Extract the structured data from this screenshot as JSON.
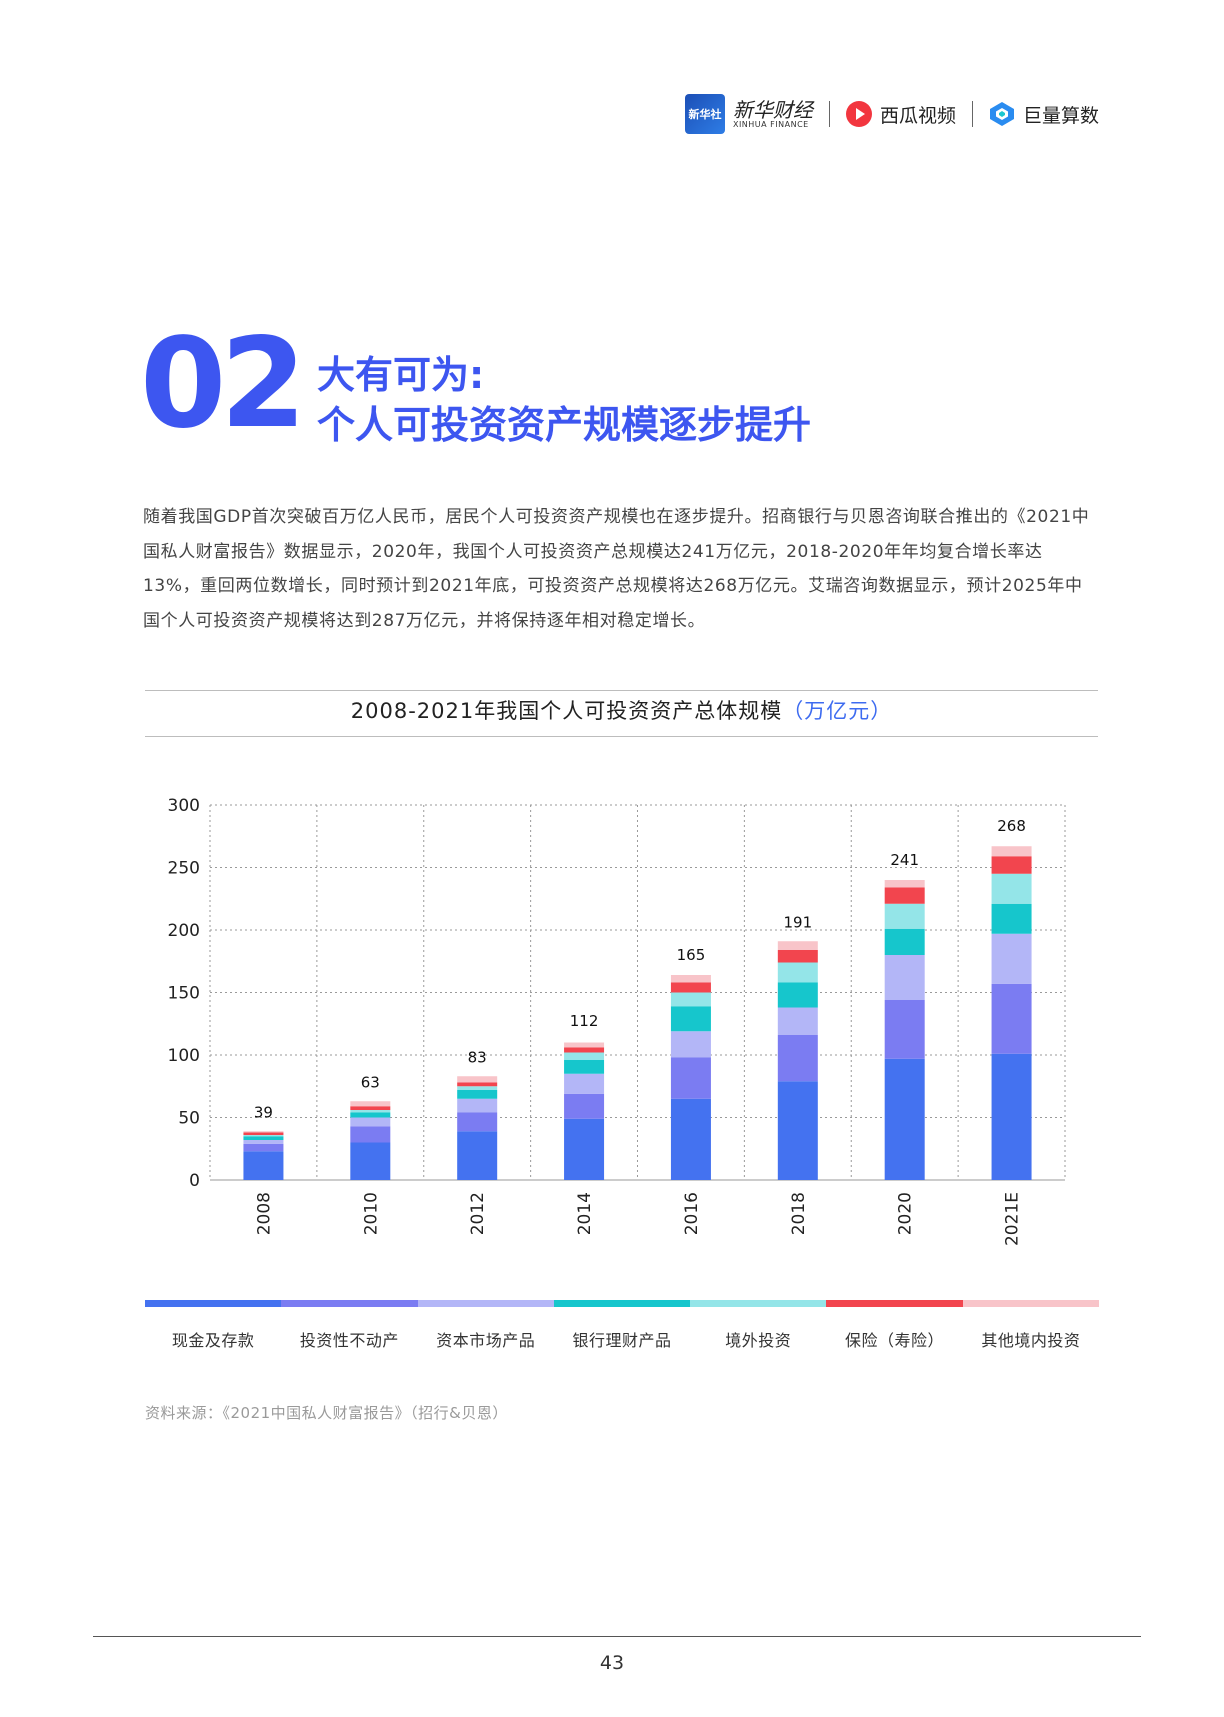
{
  "header": {
    "xinhua_box_text": "新华社",
    "xinhua_cn": "新华财经",
    "xinhua_en": "XINHUA FINANCE",
    "xigua": "西瓜视频",
    "juliang": "巨量算数",
    "brand_color": "#3d56f0"
  },
  "section": {
    "number": "02",
    "title_line1": "大有可为:",
    "title_line2": "个人可投资资产规模逐步提升"
  },
  "body_text": "随着我国GDP首次突破百万亿人民币，居民个人可投资资产规模也在逐步提升。招商银行与贝恩咨询联合推出的《2021中国私人财富报告》数据显示，2020年，我国个人可投资资产总规模达241万亿元，2018-2020年年均复合增长率达13%，重回两位数增长，同时预计到2021年底，可投资资产总规模将达268万亿元。艾瑞咨询数据显示，预计2025年中国个人可投资资产规模将达到287万亿元，并将保持逐年相对稳定增长。",
  "chart_title": "2008-2021年我国个人可投资资产总体规模",
  "chart_unit": "（万亿元）",
  "chart_data": {
    "type": "bar",
    "stacked": true,
    "categories": [
      "2008",
      "2010",
      "2012",
      "2014",
      "2016",
      "2018",
      "2020",
      "2021E"
    ],
    "ylim": [
      0,
      300
    ],
    "yticks": [
      0,
      50,
      100,
      150,
      200,
      250,
      300
    ],
    "grid": true,
    "legend_position": "bottom",
    "totals": [
      39,
      63,
      83,
      112,
      165,
      191,
      241,
      268
    ],
    "series": [
      {
        "name": "现金及存款",
        "color": "#4472f0",
        "values": [
          23,
          30,
          39,
          49,
          65,
          79,
          97,
          101
        ]
      },
      {
        "name": "投资性不动产",
        "color": "#7b7cf2",
        "values": [
          6,
          13,
          15,
          20,
          33,
          37,
          47,
          56
        ]
      },
      {
        "name": "资本市场产品",
        "color": "#b3b6f7",
        "values": [
          3,
          7,
          11,
          16,
          21,
          22,
          36,
          40
        ]
      },
      {
        "name": "银行理财产品",
        "color": "#16c6cc",
        "values": [
          3,
          4,
          7,
          11,
          20,
          20,
          21,
          24
        ]
      },
      {
        "name": "境外投资",
        "color": "#94e5e8",
        "values": [
          1,
          2,
          3,
          6,
          11,
          16,
          20,
          24
        ]
      },
      {
        "name": "保险（寿险）",
        "color": "#f2454e",
        "values": [
          2,
          3,
          3,
          4,
          8,
          10,
          13,
          14
        ]
      },
      {
        "name": "其他境内投资",
        "color": "#f8c4c9",
        "values": [
          1,
          4,
          5,
          4,
          6,
          7,
          6,
          8
        ]
      }
    ]
  },
  "source_text": "资料来源：《2021中国私人财富报告》（招行&贝恩）",
  "page_number": "43"
}
